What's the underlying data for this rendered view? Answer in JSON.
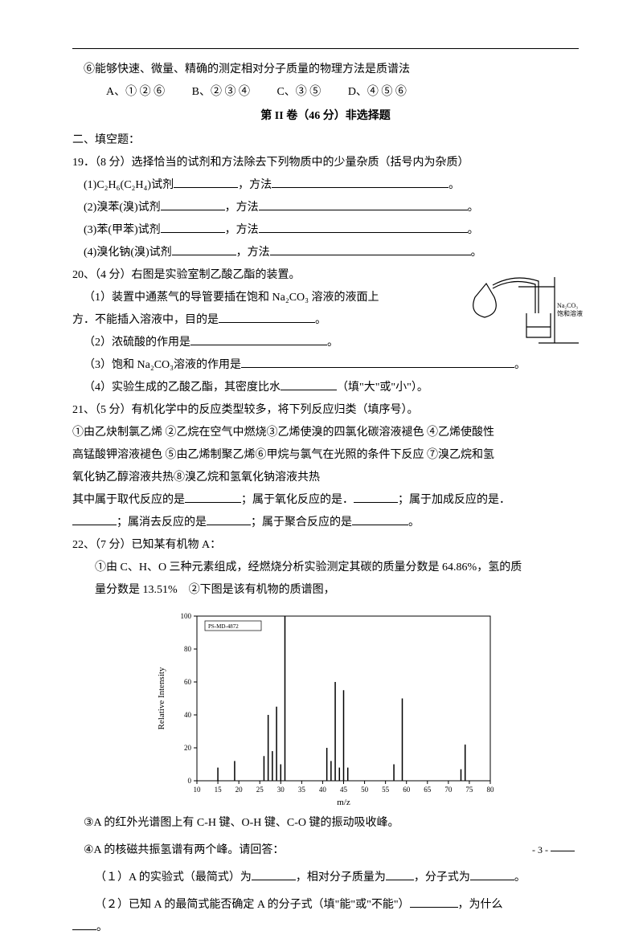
{
  "line_6": "⑥能够快速、微量、精确的测定相对分子质量的物理方法是质谱法",
  "opts": {
    "A": "A、① ② ⑥",
    "B": "B、② ③ ④",
    "C": "C、③ ⑤",
    "D": "D、④ ⑤ ⑥"
  },
  "section_title": "第 II 卷（46 分）非选择题",
  "fill_head": "二、填空题：",
  "q19": {
    "stem": "19．（8 分）选择恰当的试剂和方法除去下列物质中的少量杂质（括号内为杂质）",
    "i1a": "(1)C₂H₆(C₂H₄)试剂",
    "i1b": "，方法",
    "i2a": "(2)溴苯(溴)试剂",
    "i2b": "，方法",
    "i3a": "(3)苯(甲苯)试剂",
    "i3b": "，方法",
    "i4a": "(4)溴化钠(溴)试剂",
    "i4b": "，方法"
  },
  "q20": {
    "stem": "20、（4 分）右图是实验室制乙酸乙酯的装置。",
    "l1a": "（1）装置中通蒸气的导管要插在饱和 Na₂CO₃ 溶液的液面上",
    "l1b": "方．不能插入溶液中，目的是",
    "l2": "（2）浓硫酸的作用是",
    "l3": "（3）饱和 Na₂CO₃溶液的作用是",
    "l4a": "（4）实验生成的乙酸乙酯，其密度比水",
    "l4b": "（填\"大\"或\"小\"）。",
    "label_right": "Na₂CO₃\n饱和溶液"
  },
  "q21": {
    "stem": "21、（5 分）有机化学中的反应类型较多，将下列反应归类（填序号）。",
    "l1": "①由乙炔制氯乙烯 ②乙烷在空气中燃烧③乙烯使溴的四氯化碳溶液褪色 ④乙烯使酸性",
    "l2": "高锰酸钾溶液褪色 ⑤由乙烯制聚乙烯⑥甲烷与氯气在光照的条件下反应 ⑦溴乙烷和氢",
    "l3": "氧化钠乙醇溶液共热⑧溴乙烷和氢氧化钠溶液共热",
    "l4a": "其中属于取代反应的是",
    "l4b": "；属于氧化反应的是．",
    "l4c": "；属于加成反应的是．",
    "l5a": "；属消去反应的是",
    "l5b": "；属于聚合反应的是",
    "l5c": "。"
  },
  "q22": {
    "stem": "22、（7 分）已知某有机物 A：",
    "l1": "①由 C、H、O 三种元素组成，经燃烧分析实验测定其碳的质量分数是 64.86%，氢的质",
    "l2": "量分数是 13.51%　②下图是该有机物的质谱图，",
    "l3": "③A 的红外光谱图上有 C-H 键、O-H 键、C-O 键的振动吸收峰。",
    "l4": "④A 的核磁共振氢谱有两个峰。请回答：",
    "l5a": "（１）A 的实验式（最简式）为",
    "l5b": "，相对分子质量为",
    "l5c": "，分子式为",
    "l5d": "。",
    "l6a": "（２）已知 A 的最简式能否确定 A 的分子式（填\"能\"或\"不能\"）",
    "l6b": "，为什么",
    "l7": "。"
  },
  "chart": {
    "bg": "#ffffff",
    "axis": "#000000",
    "ylabel": "Relative Intensity",
    "xlabel": "m/z",
    "x_min": 10,
    "x_max": 80,
    "x_step": 5,
    "y_min": 0,
    "y_max": 100,
    "y_step": 20,
    "header_text": "PS-MD-4872",
    "peaks": [
      {
        "mz": 15,
        "i": 8
      },
      {
        "mz": 19,
        "i": 12
      },
      {
        "mz": 26,
        "i": 15
      },
      {
        "mz": 27,
        "i": 40
      },
      {
        "mz": 28,
        "i": 18
      },
      {
        "mz": 29,
        "i": 45
      },
      {
        "mz": 30,
        "i": 10
      },
      {
        "mz": 31,
        "i": 100
      },
      {
        "mz": 41,
        "i": 20
      },
      {
        "mz": 42,
        "i": 12
      },
      {
        "mz": 43,
        "i": 60
      },
      {
        "mz": 44,
        "i": 8
      },
      {
        "mz": 45,
        "i": 55
      },
      {
        "mz": 46,
        "i": 8
      },
      {
        "mz": 57,
        "i": 10
      },
      {
        "mz": 59,
        "i": 50
      },
      {
        "mz": 73,
        "i": 7
      },
      {
        "mz": 74,
        "i": 22
      }
    ]
  },
  "page_no": "- 3 -"
}
